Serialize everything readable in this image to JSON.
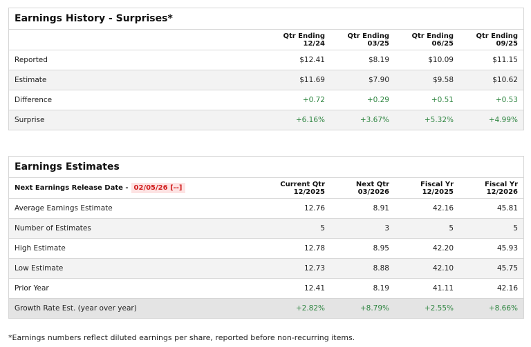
{
  "history": {
    "title": "Earnings History - Surprises*",
    "columns": [
      {
        "l1": "Qtr Ending",
        "l2": "12/24"
      },
      {
        "l1": "Qtr Ending",
        "l2": "03/25"
      },
      {
        "l1": "Qtr Ending",
        "l2": "06/25"
      },
      {
        "l1": "Qtr Ending",
        "l2": "09/25"
      }
    ],
    "rows": [
      {
        "label": "Reported",
        "values": [
          "$12.41",
          "$8.19",
          "$10.09",
          "$11.15"
        ]
      },
      {
        "label": "Estimate",
        "values": [
          "$11.69",
          "$7.90",
          "$9.58",
          "$10.62"
        ]
      },
      {
        "label": "Difference",
        "values": [
          "+0.72",
          "+0.29",
          "+0.51",
          "+0.53"
        ]
      },
      {
        "label": "Surprise",
        "values": [
          "+6.16%",
          "+3.67%",
          "+5.32%",
          "+4.99%"
        ]
      }
    ]
  },
  "estimates": {
    "title": "Earnings Estimates",
    "release_label": "Next Earnings Release Date -",
    "release_date": "02/05/26 [--]",
    "columns": [
      {
        "l1": "Current Qtr",
        "l2": "12/2025"
      },
      {
        "l1": "Next Qtr",
        "l2": "03/2026"
      },
      {
        "l1": "Fiscal Yr",
        "l2": "12/2025"
      },
      {
        "l1": "Fiscal Yr",
        "l2": "12/2026"
      }
    ],
    "rows": [
      {
        "label": "Average Earnings Estimate",
        "values": [
          "12.76",
          "8.91",
          "42.16",
          "45.81"
        ]
      },
      {
        "label": "Number of Estimates",
        "values": [
          "5",
          "3",
          "5",
          "5"
        ]
      },
      {
        "label": "High Estimate",
        "values": [
          "12.78",
          "8.95",
          "42.20",
          "45.93"
        ]
      },
      {
        "label": "Low Estimate",
        "values": [
          "12.73",
          "8.88",
          "42.10",
          "45.75"
        ]
      },
      {
        "label": "Prior Year",
        "values": [
          "12.41",
          "8.19",
          "41.11",
          "42.16"
        ]
      },
      {
        "label": "Growth Rate Est. (year over year)",
        "values": [
          "+2.82%",
          "+8.79%",
          "+2.55%",
          "+8.66%"
        ]
      }
    ]
  },
  "footnote": "*Earnings numbers reflect diluted earnings per share, reported before non-recurring items.",
  "colors": {
    "positive": "#2e8540",
    "date": "#d01c1c"
  }
}
